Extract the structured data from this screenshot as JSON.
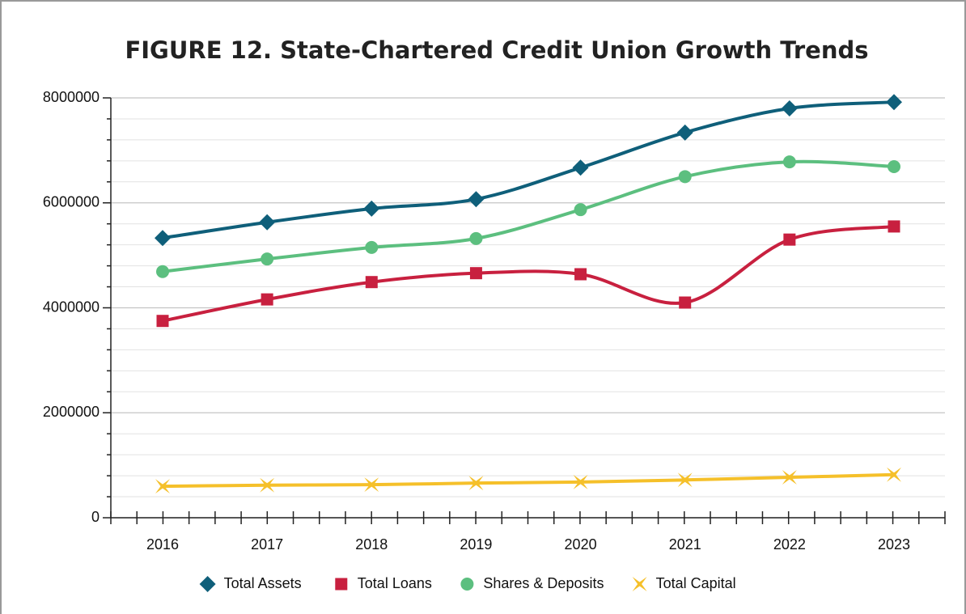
{
  "chart_data": {
    "type": "line",
    "title": "FIGURE 12. State-Chartered Credit Union Growth Trends",
    "categories": [
      "2016",
      "2017",
      "2018",
      "2019",
      "2020",
      "2021",
      "2022",
      "2023"
    ],
    "series": [
      {
        "name": "Total Assets",
        "color": "#0f5f7a",
        "marker": "diamond",
        "values": [
          5330000,
          5630000,
          5890000,
          6070000,
          6670000,
          7340000,
          7800000,
          7920000
        ]
      },
      {
        "name": "Total Loans",
        "color": "#c8203f",
        "marker": "square",
        "values": [
          3750000,
          4160000,
          4490000,
          4660000,
          4640000,
          4100000,
          5300000,
          5550000
        ]
      },
      {
        "name": "Shares & Deposits",
        "color": "#5cbf7f",
        "marker": "circle",
        "values": [
          4690000,
          4930000,
          5150000,
          5320000,
          5870000,
          6500000,
          6780000,
          6690000
        ]
      },
      {
        "name": "Total Capital",
        "color": "#f5c02a",
        "marker": "star",
        "values": [
          600000,
          620000,
          630000,
          660000,
          680000,
          720000,
          770000,
          820000
        ]
      }
    ],
    "ylim": [
      0,
      8000000
    ],
    "yticks": [
      0,
      2000000,
      4000000,
      6000000,
      8000000
    ],
    "yminorticks": [
      400000,
      800000,
      1200000,
      1600000,
      2400000,
      2800000,
      3200000,
      3600000,
      4400000,
      4800000,
      5200000,
      5600000,
      6400000,
      6800000,
      7200000,
      7600000
    ],
    "grid": true,
    "smooth": true,
    "legend": "bottom"
  }
}
